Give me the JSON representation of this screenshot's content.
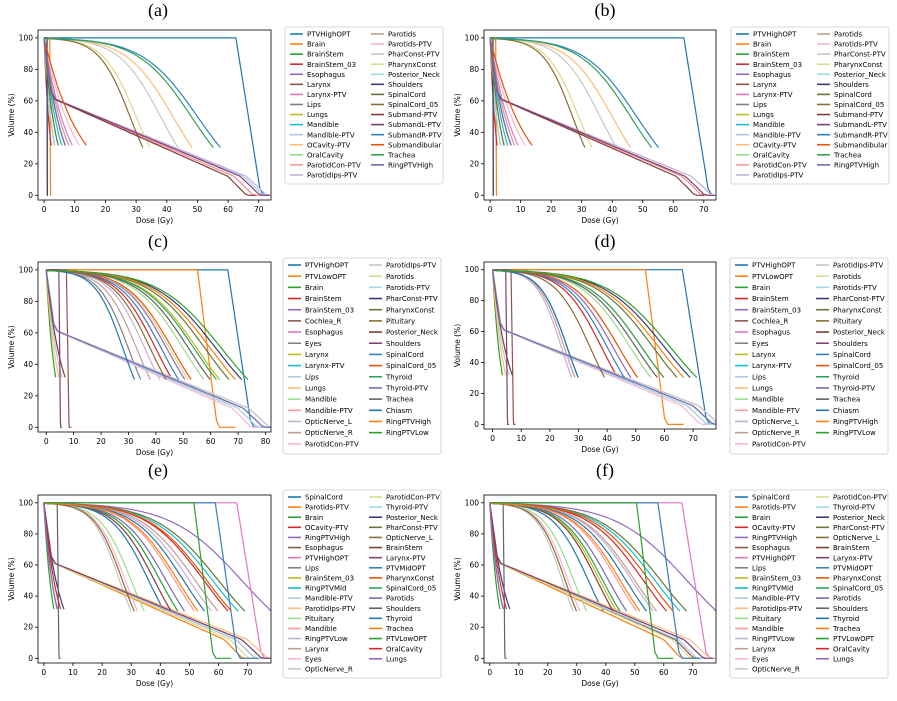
{
  "colors": {
    "palette": [
      "#1f77b4",
      "#ff7f0e",
      "#2ca02c",
      "#d62728",
      "#9467bd",
      "#8c564b",
      "#e377c2",
      "#7f7f7f",
      "#bcbd22",
      "#17becf",
      "#aec7e8",
      "#ffbb78",
      "#98df8a",
      "#ff9896",
      "#c5b0d5",
      "#c49c94",
      "#f7b6d2",
      "#c7c7c7",
      "#dbdb8d",
      "#9edae5",
      "#393b79",
      "#637939",
      "#8c6d31",
      "#843c39",
      "#7b4173",
      "#3182bd",
      "#e6550d",
      "#31a354",
      "#756bb1",
      "#636363"
    ]
  },
  "chart_data": [
    {
      "type": "line",
      "caption": "(a)",
      "xlabel": "Dose (Gy)",
      "ylabel": "Volume (%)",
      "xlim": [
        -2,
        74
      ],
      "ylim": [
        -3,
        105
      ],
      "xticks": [
        0,
        10,
        20,
        30,
        40,
        50,
        60,
        70
      ],
      "yticks": [
        0,
        20,
        40,
        60,
        80,
        100
      ],
      "legend": [
        "PTVHighOPT",
        "Brain",
        "BrainStem",
        "BrainStem_03",
        "Esophagus",
        "Larynx",
        "Larynx-PTV",
        "Lips",
        "Lungs",
        "Mandible",
        "Mandible-PTV",
        "OCavity-PTV",
        "OralCavity",
        "ParotidCon-PTV",
        "ParotidIps-PTV",
        "Parotids",
        "Parotids-PTV",
        "PharConst-PTV",
        "PharynxConst",
        "Posterior_Neck",
        "Shoulders",
        "SpinalCord",
        "SpinalCord_05",
        "Submand-PTV",
        "SubmandL-PTV",
        "SubmandR-PTV",
        "Submandibular",
        "Trachea",
        "RingPTVHigh"
      ],
      "series_shapes": [
        [
          "step",
          68
        ],
        [
          "step",
          2
        ],
        [
          "exp",
          3
        ],
        [
          "exp",
          2
        ],
        [
          "lin",
          62
        ],
        [
          "exp",
          6
        ],
        [
          "exp",
          8
        ],
        [
          "step",
          1
        ],
        [
          "step",
          1
        ],
        [
          "exp",
          5
        ],
        [
          "lin",
          65
        ],
        [
          "sig",
          42
        ],
        [
          "exp",
          4
        ],
        [
          "lin",
          62
        ],
        [
          "lin",
          66
        ],
        [
          "exp",
          7
        ],
        [
          "exp",
          10
        ],
        [
          "sig",
          38
        ],
        [
          "sig",
          30
        ],
        [
          "exp",
          3
        ],
        [
          "step",
          1
        ],
        [
          "exp",
          4
        ],
        [
          "sig",
          28
        ],
        [
          "lin",
          60
        ],
        [
          "lin",
          64
        ],
        [
          "sig",
          50
        ],
        [
          "exp",
          12
        ],
        [
          "sig",
          48
        ],
        [
          "exp",
          6
        ]
      ]
    },
    {
      "type": "line",
      "caption": "(b)",
      "xlabel": "Dose (Gy)",
      "ylabel": "Volume (%)",
      "xlim": [
        -2,
        74
      ],
      "ylim": [
        -3,
        105
      ],
      "xticks": [
        0,
        10,
        20,
        30,
        40,
        50,
        60,
        70
      ],
      "yticks": [
        0,
        20,
        40,
        60,
        80,
        100
      ],
      "legend": [
        "PTVHighOPT",
        "Brain",
        "BrainStem",
        "BrainStem_03",
        "Esophagus",
        "Larynx",
        "Larynx-PTV",
        "Lips",
        "Lungs",
        "Mandible",
        "Mandible-PTV",
        "OCavity-PTV",
        "OralCavity",
        "ParotidCon-PTV",
        "ParotidIps-PTV",
        "Parotids",
        "Parotids-PTV",
        "PharConst-PTV",
        "PharynxConst",
        "Posterior_Neck",
        "Shoulders",
        "SpinalCord",
        "SpinalCord_05",
        "Submand-PTV",
        "SubmandL-PTV",
        "SubmandR-PTV",
        "Submandibular",
        "Trachea",
        "RingPTVHigh"
      ],
      "series_shapes": [
        [
          "step",
          69
        ],
        [
          "step",
          2
        ],
        [
          "exp",
          3
        ],
        [
          "exp",
          2
        ],
        [
          "lin",
          63
        ],
        [
          "exp",
          6
        ],
        [
          "exp",
          8
        ],
        [
          "step",
          1
        ],
        [
          "step",
          1
        ],
        [
          "exp",
          5
        ],
        [
          "lin",
          66
        ],
        [
          "sig",
          40
        ],
        [
          "exp",
          4
        ],
        [
          "lin",
          63
        ],
        [
          "lin",
          66
        ],
        [
          "exp",
          7
        ],
        [
          "exp",
          10
        ],
        [
          "sig",
          36
        ],
        [
          "sig",
          29
        ],
        [
          "exp",
          3
        ],
        [
          "step",
          1
        ],
        [
          "exp",
          4
        ],
        [
          "sig",
          27
        ],
        [
          "lin",
          61
        ],
        [
          "lin",
          64
        ],
        [
          "sig",
          48
        ],
        [
          "exp",
          12
        ],
        [
          "sig",
          46
        ],
        [
          "exp",
          6
        ]
      ]
    },
    {
      "type": "line",
      "caption": "(c)",
      "xlabel": "Dose (Gy)",
      "ylabel": "Volume (%)",
      "xlim": [
        -3,
        82
      ],
      "ylim": [
        -3,
        105
      ],
      "xticks": [
        0,
        10,
        20,
        30,
        40,
        50,
        60,
        70,
        80
      ],
      "yticks": [
        0,
        20,
        40,
        60,
        80,
        100
      ],
      "legend": [
        "PTVHighOPT",
        "PTVLowOPT",
        "Brain",
        "BrainStem",
        "BrainStem_03",
        "Cochlea_R",
        "Esophagus",
        "Eyes",
        "Larynx",
        "Larynx-PTV",
        "Lips",
        "Lungs",
        "Mandible",
        "Mandible-PTV",
        "OpticNerve_L",
        "OpticNerve_R",
        "ParotidCon-PTV",
        "ParotidIps-PTV",
        "Parotids",
        "Parotids-PTV",
        "PharConst-PTV",
        "PharynxConst",
        "Pituitary",
        "Posterior_Neck",
        "Shoulders",
        "SpinalCord",
        "SpinalCord_05",
        "Thyroid",
        "Thyroid-PTV",
        "Trachea",
        "Chiasm",
        "RingPTVHigh",
        "RingPTVLow"
      ],
      "series_shapes": [
        [
          "step",
          72
        ],
        [
          "step",
          60
        ],
        [
          "exp",
          3
        ],
        [
          "sig",
          40
        ],
        [
          "sig",
          44
        ],
        [
          "step",
          8
        ],
        [
          "lin",
          70
        ],
        [
          "sig",
          30
        ],
        [
          "sig",
          55
        ],
        [
          "lin",
          72
        ],
        [
          "exp",
          5
        ],
        [
          "exp",
          4
        ],
        [
          "sig",
          50
        ],
        [
          "lin",
          74
        ],
        [
          "sig",
          36
        ],
        [
          "sig",
          33
        ],
        [
          "lin",
          68
        ],
        [
          "lin",
          74
        ],
        [
          "sig",
          45
        ],
        [
          "lin",
          70
        ],
        [
          "sig",
          62
        ],
        [
          "sig",
          58
        ],
        [
          "sig",
          38
        ],
        [
          "exp",
          6
        ],
        [
          "step",
          5
        ],
        [
          "sig",
          42
        ],
        [
          "sig",
          46
        ],
        [
          "sig",
          54
        ],
        [
          "lin",
          72
        ],
        [
          "sig",
          52
        ],
        [
          "sig",
          28
        ],
        [
          "sig",
          60
        ],
        [
          "sig",
          64
        ]
      ]
    },
    {
      "type": "line",
      "caption": "(d)",
      "xlabel": "Dose (Gy)",
      "ylabel": "Volume (%)",
      "xlim": [
        -3,
        78
      ],
      "ylim": [
        -3,
        105
      ],
      "xticks": [
        0,
        10,
        20,
        30,
        40,
        50,
        60,
        70
      ],
      "yticks": [
        0,
        20,
        40,
        60,
        80,
        100
      ],
      "legend": [
        "PTVHighOPT",
        "PTVLowOPT",
        "Brain",
        "BrainStem",
        "BrainStem_03",
        "Cochlea_R",
        "Esophagus",
        "Eyes",
        "Larynx",
        "Larynx-PTV",
        "Lips",
        "Lungs",
        "Mandible",
        "Mandible-PTV",
        "OpticNerve_L",
        "OpticNerve_R",
        "ParotidCon-PTV",
        "ParotidIps-PTV",
        "Parotids",
        "Parotids-PTV",
        "PharConst-PTV",
        "PharynxConst",
        "Pituitary",
        "Posterior_Neck",
        "Shoulders",
        "SpinalCord",
        "SpinalCord_05",
        "Thyroid",
        "Thyroid-PTV",
        "Trachea",
        "Chiasm",
        "RingPTVHigh",
        "RingPTVLow"
      ],
      "series_shapes": [
        [
          "step",
          72
        ],
        [
          "step",
          58
        ],
        [
          "exp",
          3
        ],
        [
          "sig",
          38
        ],
        [
          "sig",
          42
        ],
        [
          "step",
          7
        ],
        [
          "lin",
          68
        ],
        [
          "sig",
          26
        ],
        [
          "sig",
          52
        ],
        [
          "lin",
          70
        ],
        [
          "exp",
          5
        ],
        [
          "exp",
          4
        ],
        [
          "sig",
          48
        ],
        [
          "lin",
          72
        ],
        [
          "sig",
          24
        ],
        [
          "sig",
          25
        ],
        [
          "lin",
          66
        ],
        [
          "lin",
          72
        ],
        [
          "sig",
          44
        ],
        [
          "lin",
          68
        ],
        [
          "sig",
          60
        ],
        [
          "sig",
          56
        ],
        [
          "sig",
          34
        ],
        [
          "exp",
          6
        ],
        [
          "step",
          5
        ],
        [
          "sig",
          40
        ],
        [
          "sig",
          44
        ],
        [
          "sig",
          52
        ],
        [
          "lin",
          70
        ],
        [
          "sig",
          50
        ],
        [
          "sig",
          26
        ],
        [
          "sig",
          58
        ],
        [
          "sig",
          62
        ]
      ]
    },
    {
      "type": "line",
      "caption": "(e)",
      "xlabel": "Dose (Gy)",
      "ylabel": "Volume (%)",
      "xlim": [
        -2,
        78
      ],
      "ylim": [
        -3,
        105
      ],
      "xticks": [
        0,
        10,
        20,
        30,
        40,
        50,
        60,
        70
      ],
      "yticks": [
        0,
        20,
        40,
        60,
        80,
        100
      ],
      "legend": [
        "SpinalCord",
        "Parotids-PTV",
        "Brain",
        "OCavity-PTV",
        "RingPTVHigh",
        "Esophagus",
        "PTVHighOPT",
        "Lips",
        "BrainStem_03",
        "RingPTVMid",
        "Mandible-PTV",
        "ParotidIps-PTV",
        "Pituitary",
        "Mandible",
        "RingPTVLow",
        "Larynx",
        "Eyes",
        "OpticNerve_R",
        "ParotidCon-PTV",
        "Thyroid-PTV",
        "Posterior_Neck",
        "PharConst-PTV",
        "OpticNerve_L",
        "BrainStem",
        "Larynx-PTV",
        "PTVMidOPT",
        "PharynxConst",
        "SpinalCord_05",
        "Parotids",
        "Shoulders",
        "Thyroid",
        "Trachea",
        "PTVLowOPT",
        "OralCavity",
        "Lungs"
      ],
      "series_shapes": [
        [
          "sig",
          36
        ],
        [
          "lin",
          62
        ],
        [
          "exp",
          3
        ],
        [
          "sig",
          55
        ],
        [
          "sig",
          68
        ],
        [
          "lin",
          66
        ],
        [
          "step",
          72
        ],
        [
          "exp",
          4
        ],
        [
          "sig",
          40
        ],
        [
          "sig",
          58
        ],
        [
          "lin",
          66
        ],
        [
          "lin",
          70
        ],
        [
          "sig",
          30
        ],
        [
          "sig",
          45
        ],
        [
          "sig",
          50
        ],
        [
          "sig",
          52
        ],
        [
          "sig",
          28
        ],
        [
          "sig",
          26
        ],
        [
          "lin",
          64
        ],
        [
          "lin",
          68
        ],
        [
          "exp",
          6
        ],
        [
          "sig",
          60
        ],
        [
          "sig",
          27
        ],
        [
          "sig",
          38
        ],
        [
          "lin",
          68
        ],
        [
          "step",
          64
        ],
        [
          "sig",
          56
        ],
        [
          "sig",
          40
        ],
        [
          "sig",
          42
        ],
        [
          "step",
          5
        ],
        [
          "sig",
          48
        ],
        [
          "sig",
          46
        ],
        [
          "step",
          56
        ],
        [
          "exp",
          5
        ],
        [
          "exp",
          4
        ]
      ]
    },
    {
      "type": "line",
      "caption": "(f)",
      "xlabel": "Dose (Gy)",
      "ylabel": "Volume (%)",
      "xlim": [
        -2,
        78
      ],
      "ylim": [
        -3,
        105
      ],
      "xticks": [
        0,
        10,
        20,
        30,
        40,
        50,
        60,
        70
      ],
      "yticks": [
        0,
        20,
        40,
        60,
        80,
        100
      ],
      "legend": [
        "SpinalCord",
        "Parotids-PTV",
        "Brain",
        "OCavity-PTV",
        "RingPTVHigh",
        "Esophagus",
        "PTVHighOPT",
        "Lips",
        "BrainStem_03",
        "RingPTVMid",
        "Mandible-PTV",
        "ParotidIps-PTV",
        "Pituitary",
        "Mandible",
        "RingPTVLow",
        "Larynx",
        "Eyes",
        "OpticNerve_R",
        "ParotidCon-PTV",
        "Thyroid-PTV",
        "Posterior_Neck",
        "PharConst-PTV",
        "OpticNerve_L",
        "BrainStem",
        "Larynx-PTV",
        "PTVMidOPT",
        "PharynxConst",
        "SpinalCord_05",
        "Parotids",
        "Shoulders",
        "Thyroid",
        "Trachea",
        "PTVLowOPT",
        "OralCavity",
        "Lungs"
      ],
      "series_shapes": [
        [
          "sig",
          34
        ],
        [
          "lin",
          60
        ],
        [
          "exp",
          3
        ],
        [
          "sig",
          53
        ],
        [
          "sig",
          68
        ],
        [
          "lin",
          64
        ],
        [
          "step",
          72
        ],
        [
          "exp",
          4
        ],
        [
          "sig",
          38
        ],
        [
          "sig",
          57
        ],
        [
          "lin",
          65
        ],
        [
          "lin",
          69
        ],
        [
          "sig",
          29
        ],
        [
          "sig",
          44
        ],
        [
          "sig",
          49
        ],
        [
          "sig",
          50
        ],
        [
          "sig",
          27
        ],
        [
          "sig",
          25
        ],
        [
          "lin",
          63
        ],
        [
          "lin",
          67
        ],
        [
          "exp",
          6
        ],
        [
          "sig",
          59
        ],
        [
          "sig",
          26
        ],
        [
          "sig",
          37
        ],
        [
          "lin",
          67
        ],
        [
          "step",
          63
        ],
        [
          "sig",
          55
        ],
        [
          "sig",
          39
        ],
        [
          "sig",
          41
        ],
        [
          "step",
          5
        ],
        [
          "sig",
          47
        ],
        [
          "sig",
          45
        ],
        [
          "step",
          55
        ],
        [
          "exp",
          5
        ],
        [
          "exp",
          4
        ]
      ]
    }
  ]
}
